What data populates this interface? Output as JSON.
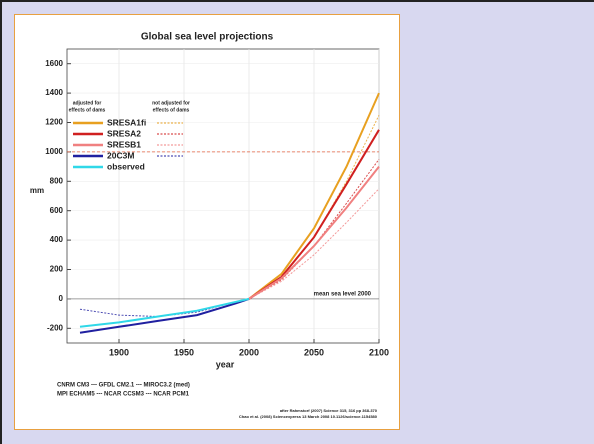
{
  "chart_data": {
    "type": "line",
    "title": "Global sea level projections",
    "y_label": "mm",
    "x_label": "year",
    "x": [
      1870,
      1900,
      1930,
      1960,
      1990,
      2000,
      2025,
      2050,
      2075,
      2100
    ],
    "xlim": [
      1860,
      2100
    ],
    "xticks": [
      1900,
      1950,
      2000,
      2050,
      2100
    ],
    "ylim": [
      -300,
      1700
    ],
    "yticks": [
      -200,
      0,
      200,
      400,
      600,
      800,
      1000,
      1200,
      1400,
      1600
    ],
    "grid": true,
    "legend_headers": [
      [
        "adjusted for",
        "effects of dams"
      ],
      [
        "not adjusted for",
        "effects of dams"
      ]
    ],
    "series": [
      {
        "name": "SRESA1fi",
        "color": "#e8a020",
        "values": [
          null,
          null,
          null,
          null,
          null,
          0,
          170,
          480,
          900,
          1400
        ],
        "values_unadjusted": [
          null,
          null,
          null,
          null,
          null,
          0,
          150,
          420,
          800,
          1250
        ]
      },
      {
        "name": "SRESA2",
        "color": "#d02020",
        "values": [
          null,
          null,
          null,
          null,
          null,
          0,
          150,
          420,
          780,
          1150
        ],
        "values_unadjusted": [
          null,
          null,
          null,
          null,
          null,
          0,
          130,
          360,
          650,
          950
        ]
      },
      {
        "name": "SRESB1",
        "color": "#f08080",
        "values": [
          null,
          null,
          null,
          null,
          null,
          0,
          140,
          360,
          620,
          900
        ],
        "values_unadjusted": [
          null,
          null,
          null,
          null,
          null,
          0,
          120,
          300,
          520,
          750
        ]
      },
      {
        "name": "20C3M",
        "color": "#2020a0",
        "values": [
          -230,
          -190,
          -150,
          -110,
          -30,
          0,
          null,
          null,
          null,
          null
        ],
        "values_unadjusted": [
          -70,
          -110,
          -120,
          -90,
          -20,
          0,
          null,
          null,
          null,
          null
        ]
      },
      {
        "name": "observed",
        "color": "#30d8e8",
        "values": [
          -190,
          -160,
          -120,
          -80,
          -20,
          0,
          null,
          null,
          null,
          null
        ]
      }
    ],
    "reference_lines": [
      {
        "value": 1000,
        "color": "#e06040"
      },
      {
        "value": 0,
        "color": "#808080",
        "label": "mean sea level 2000"
      }
    ],
    "notes": [
      "CNRM CM3 --- GFDL CM2.1 --- MIROC3.2 (med)",
      "MPI ECHAM5 --- NCAR CCSM3 --- NCAR PCM1"
    ],
    "citations": [
      "after Rahmstorf (2007) Science 315, 316 pp 368-370",
      "Chao et al. (2008) Sciencexpress 13 March 2008 10.1126/science.1154580"
    ]
  }
}
